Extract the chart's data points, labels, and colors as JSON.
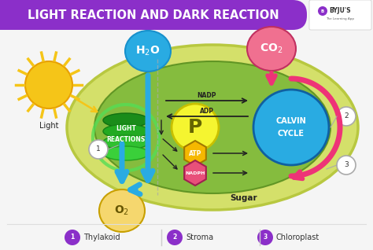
{
  "title": "LIGHT REACTION AND DARK REACTION",
  "title_bg": "#8b2fc9",
  "title_color": "#ffffff",
  "bg_color": "#f5f5f5",
  "legend": [
    {
      "num": "1",
      "label": "Thylakoid"
    },
    {
      "num": "2",
      "label": "Stroma"
    },
    {
      "num": "3",
      "label": "Chloroplast"
    }
  ],
  "chloroplast_outer": "#d4e06a",
  "chloroplast_inner": "#7db83a",
  "h2o_color": "#29abe2",
  "co2_color": "#f07090",
  "o2_color": "#f5d76e",
  "p_color": "#f0f050",
  "calvin_color": "#29abe2",
  "pink_arrow": "#ee3377",
  "blue_arrow": "#29abe2",
  "atp_color": "#f5b800",
  "nadph_color": "#e8507a",
  "sun_color": "#f5c518",
  "legend_circle": "#8b2fc9"
}
